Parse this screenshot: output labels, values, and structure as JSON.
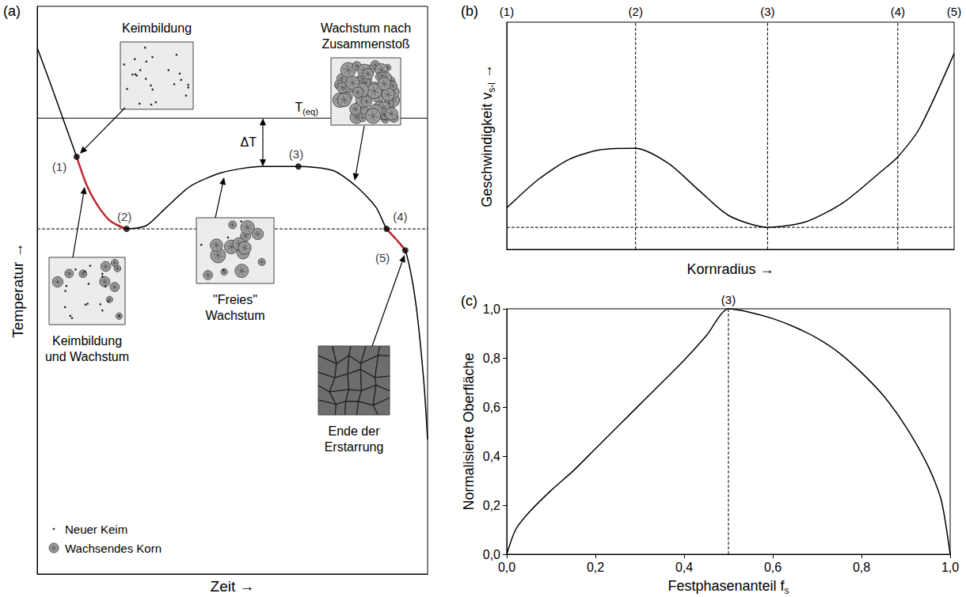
{
  "chart_data": [
    {
      "type": "line",
      "panel_label": "(a)",
      "x_label": "Zeit →",
      "y_label": "Temperatur →",
      "xlim": [
        0,
        100
      ],
      "ylim": [
        0,
        100
      ],
      "tick_labels": false,
      "grid": false,
      "series": [
        {
          "color": "#000000",
          "line_style": "solid",
          "x": [
            0,
            3.7,
            10.1,
            12.8,
            15.8,
            18.9,
            22.9,
            28.0,
            33.1,
            39.2,
            47.3,
            57.4,
            66.9,
            75.7,
            81.7,
            86.8,
            89.5,
            91.9,
            94.3,
            96.9,
            99,
            100
          ],
          "values": [
            92.7,
            85.8,
            73.5,
            68.3,
            64.6,
            62.1,
            60.8,
            61.4,
            64.6,
            68.3,
            70.7,
            71.8,
            71.8,
            71.1,
            68.3,
            64.6,
            60.8,
            59.0,
            57.0,
            48.1,
            34.2,
            23.7
          ]
        },
        {
          "color": "#c1272d",
          "line_style": "solid",
          "x": [
            10.1,
            12.8,
            15.8,
            18.9,
            22.9
          ],
          "values": [
            73.5,
            68.3,
            64.6,
            62.1,
            60.8
          ]
        },
        {
          "color": "#c1272d",
          "line_style": "solid",
          "x": [
            89.5,
            91.9,
            94.3
          ],
          "values": [
            60.8,
            59.0,
            57.0
          ]
        }
      ],
      "hlines": [
        {
          "y": 80.3,
          "line_style": "solid",
          "label": [
            {
              "text": "T"
            },
            {
              "text": "(eq)",
              "subscript": true
            }
          ]
        },
        {
          "y": 60.8,
          "line_style": "dashed"
        }
      ],
      "points": [
        {
          "label": "(1)",
          "x": 10.1,
          "y": 73.5
        },
        {
          "label": "(2)",
          "x": 22.9,
          "y": 60.8
        },
        {
          "label": "(3)",
          "x": 66.9,
          "y": 71.8
        },
        {
          "label": "(4)",
          "x": 89.5,
          "y": 60.8
        },
        {
          "label": "(5)",
          "x": 94.3,
          "y": 57.0
        }
      ],
      "annotations": [
        {
          "text": "ΔT",
          "x": 57.8,
          "from": 80.3,
          "to": 71.8
        }
      ],
      "insets": [
        {
          "lines": [
            "Keimbildung"
          ]
        },
        {
          "lines": [
            "Keimbildung",
            "und Wachstum"
          ]
        },
        {
          "lines": [
            "\"Freies\"",
            "Wachstum"
          ]
        },
        {
          "lines": [
            "Wachstum nach",
            "Zusammenstoß"
          ]
        },
        {
          "lines": [
            "Ende der",
            "Erstarrung"
          ]
        }
      ],
      "symbol_key": [
        {
          "label": "Neuer Keim",
          "marker": "dot"
        },
        {
          "label": "Wachsendes Korn",
          "marker": "grain"
        }
      ]
    },
    {
      "type": "line",
      "panel_label": "(b)",
      "x_label": "Kornradius →",
      "y_label": [
        {
          "text": "Geschwindigkeit v"
        },
        {
          "text": "s-l",
          "subscript": true
        },
        {
          "text": " →"
        }
      ],
      "xlim": [
        0,
        100
      ],
      "ylim": [
        0,
        100
      ],
      "tick_labels": false,
      "grid": false,
      "series": [
        {
          "color": "#000000",
          "line_style": "solid",
          "x": [
            0,
            7.2,
            14.0,
            20.8,
            28.8,
            36.1,
            43.0,
            49.7,
            58.3,
            66.8,
            75.3,
            83.8,
            87.4,
            92.3,
            100
          ],
          "values": [
            18.3,
            31.0,
            39.7,
            43.8,
            44.5,
            37.9,
            25.9,
            14.8,
            9.7,
            12.1,
            20.7,
            34.5,
            40.7,
            53.4,
            86.2
          ]
        }
      ],
      "hlines": [
        {
          "y": 9.7,
          "line_style": "dashed"
        }
      ],
      "markers": [
        {
          "label": "(1)",
          "x": 0
        },
        {
          "label": "(2)",
          "x": 28.8,
          "line_style": "dashed"
        },
        {
          "label": "(3)",
          "x": 58.3,
          "line_style": "dashed"
        },
        {
          "label": "(4)",
          "x": 87.4,
          "line_style": "dashed"
        },
        {
          "label": "(5)",
          "x": 100
        }
      ]
    },
    {
      "type": "line",
      "panel_label": "(c)",
      "x_label": [
        {
          "text": "Festphasenanteil f"
        },
        {
          "text": "s",
          "subscript": true
        }
      ],
      "y_label": "Normalisierte Oberfläche",
      "xlim": [
        0,
        1
      ],
      "ylim": [
        0,
        1
      ],
      "xticks": [
        {
          "value": 0,
          "label": "0,0"
        },
        {
          "value": 0.2,
          "label": "0,2"
        },
        {
          "value": 0.4,
          "label": "0,4"
        },
        {
          "value": 0.6,
          "label": "0,6"
        },
        {
          "value": 0.8,
          "label": "0,8"
        },
        {
          "value": 1,
          "label": "1,0"
        }
      ],
      "yticks": [
        {
          "value": 0,
          "label": "0,0"
        },
        {
          "value": 0.2,
          "label": "0,2"
        },
        {
          "value": 0.4,
          "label": "0,4"
        },
        {
          "value": 0.6,
          "label": "0,6"
        },
        {
          "value": 0.8,
          "label": "0,8"
        },
        {
          "value": 1,
          "label": "1,0"
        }
      ],
      "grid": false,
      "series": [
        {
          "color": "#000000",
          "line_style": "solid",
          "x": [
            0,
            0.02,
            0.05,
            0.1,
            0.15,
            0.2,
            0.25,
            0.3,
            0.35,
            0.4,
            0.45,
            0.5,
            0.55,
            0.6,
            0.65,
            0.7,
            0.75,
            0.8,
            0.85,
            0.9,
            0.95,
            0.98,
            1
          ],
          "values": [
            0,
            0.1,
            0.17,
            0.26,
            0.34,
            0.43,
            0.52,
            0.61,
            0.7,
            0.79,
            0.89,
            1.0,
            0.985,
            0.96,
            0.925,
            0.88,
            0.82,
            0.74,
            0.645,
            0.52,
            0.36,
            0.22,
            0
          ]
        }
      ],
      "markers": [
        {
          "label": "(3)",
          "x": 0.5,
          "line_style": "dashed"
        }
      ]
    }
  ]
}
